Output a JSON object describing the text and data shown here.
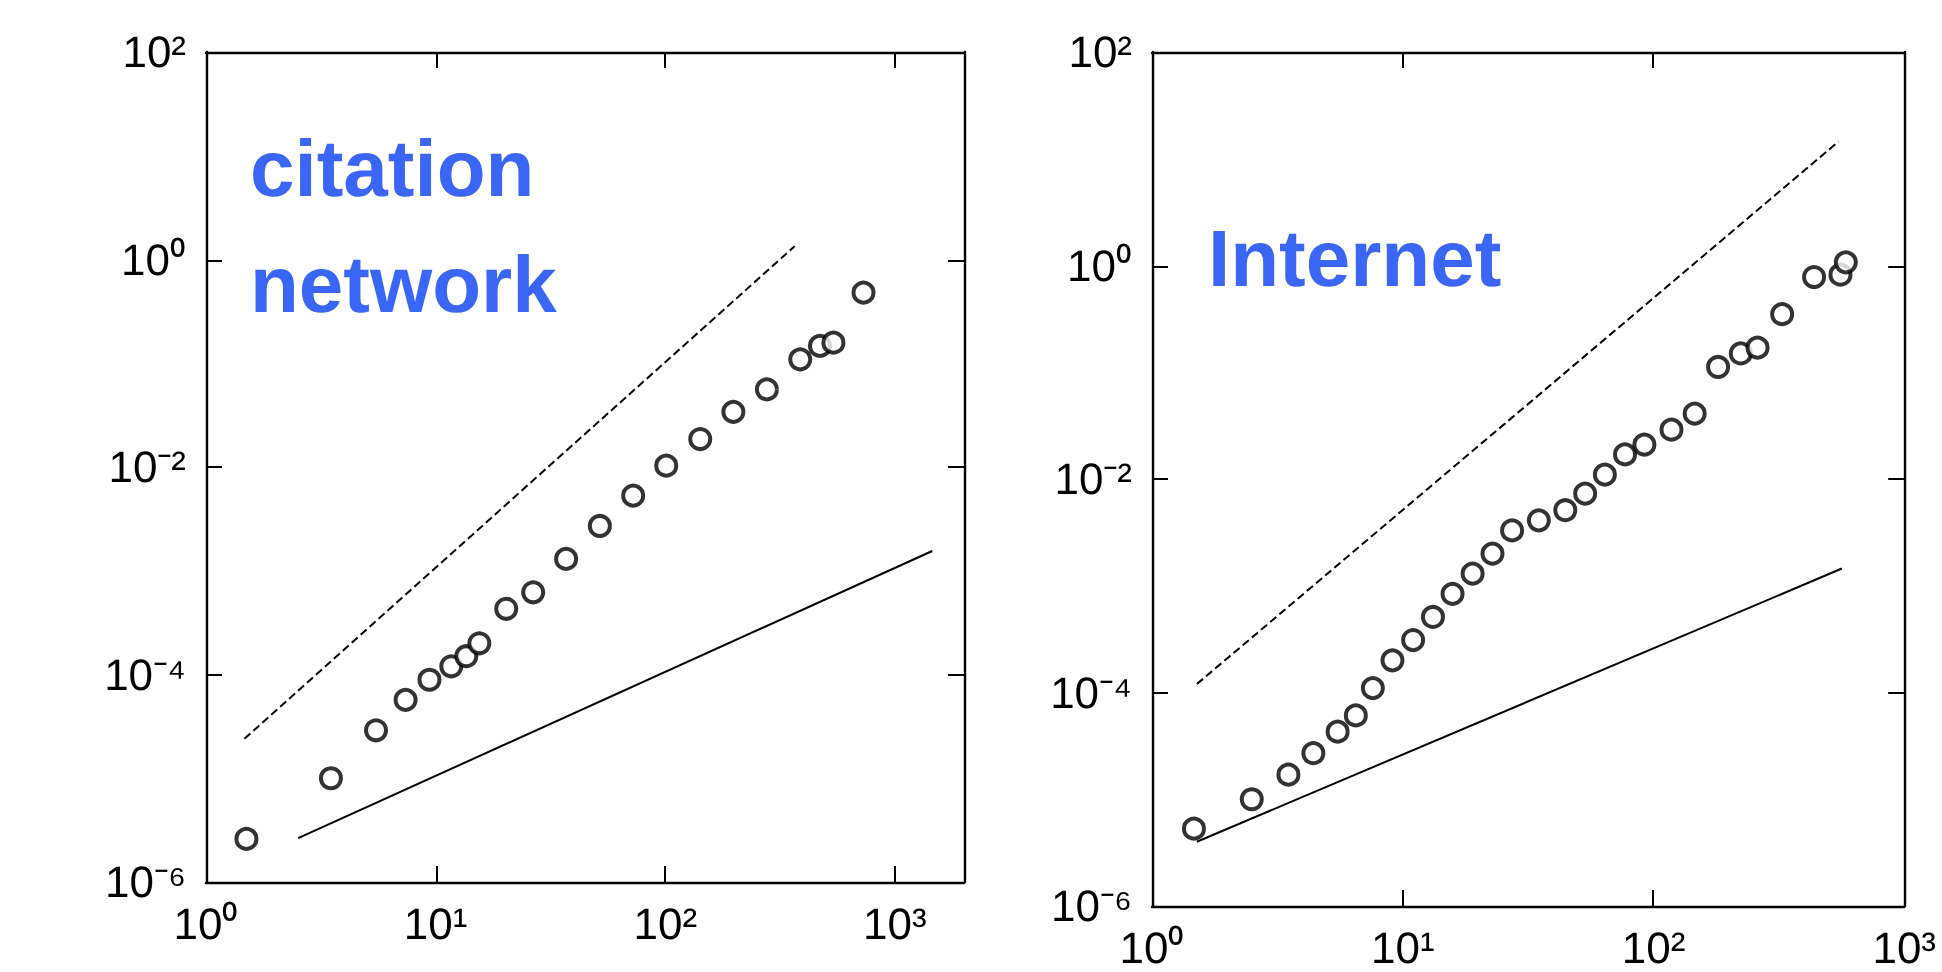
{
  "chart_data": [
    {
      "type": "scatter",
      "annotations": [
        "citation network"
      ],
      "log": "xy",
      "xlim": [
        1,
        2000
      ],
      "ylim": [
        1e-06,
        100
      ],
      "xticks": [
        {
          "value": 1,
          "label": "10⁰"
        },
        {
          "value": 10,
          "label": "10¹"
        },
        {
          "value": 100,
          "label": "10²"
        },
        {
          "value": 1000,
          "label": "10³"
        }
      ],
      "yticks": [
        {
          "value": 1e-06,
          "label": "10⁻⁶"
        },
        {
          "value": 0.0001,
          "label": "10⁻⁴"
        },
        {
          "value": 0.01,
          "label": "10⁻²"
        },
        {
          "value": 1,
          "label": "10⁰"
        },
        {
          "value": 100,
          "label": "10²"
        }
      ],
      "series": [
        {
          "color": "#000000",
          "marker": "circle",
          "x": [
            1.5,
            3.5,
            5.5,
            7.4,
            9.4,
            11.7,
            13.6,
            15.5,
            20.3,
            26.6,
            37,
            51.9,
            72.5,
            101,
            142,
            198,
            277,
            387,
            472,
            540,
            730
          ],
          "values": [
            2.6e-06,
            1e-05,
            2.9e-05,
            5.7e-05,
            8.9e-05,
            0.00012,
            0.00015,
            0.0002,
            0.00043,
            0.00062,
            0.0013,
            0.0027,
            0.0053,
            0.0103,
            0.0186,
            0.034,
            0.056,
            0.109,
            0.147,
            0.158,
            0.48
          ]
        },
        {
          "type": "line",
          "color": "#000000",
          "marker": "none",
          "line_style": "dashed",
          "x": [
            1.47,
            366
          ],
          "values": [
            2.4e-05,
            1.34
          ]
        },
        {
          "type": "line",
          "color": "#000000",
          "marker": "none",
          "line_style": "solid",
          "x": [
            2.52,
            1455
          ],
          "values": [
            2.65e-06,
            0.00155
          ]
        }
      ]
    },
    {
      "type": "scatter",
      "annotations": [
        "Internet"
      ],
      "log": "xy",
      "xlim": [
        1,
        1000
      ],
      "ylim": [
        1e-06,
        100
      ],
      "xticks": [
        {
          "value": 1,
          "label": "10⁰"
        },
        {
          "value": 10,
          "label": "10¹"
        },
        {
          "value": 100,
          "label": "10²"
        },
        {
          "value": 1000,
          "label": "10³"
        }
      ],
      "yticks": [
        {
          "value": 1e-06,
          "label": "10⁻⁶"
        },
        {
          "value": 0.0001,
          "label": "10⁻⁴"
        },
        {
          "value": 0.01,
          "label": "10⁻²"
        },
        {
          "value": 1,
          "label": "10⁰"
        },
        {
          "value": 100,
          "label": "10²"
        }
      ],
      "series": [
        {
          "color": "#000000",
          "marker": "circle",
          "x": [
            1.47,
            2.5,
            3.5,
            4.4,
            5.5,
            6.5,
            7.6,
            9.1,
            11,
            13.2,
            15.8,
            19,
            22.8,
            27.3,
            34.9,
            44.5,
            53.4,
            64,
            77,
            92,
            118,
            146,
            181,
            223,
            260,
            326,
            437,
            557,
            585
          ],
          "values": [
            5.3e-06,
            1e-05,
            1.7e-05,
            2.7e-05,
            4.3e-05,
            6.1e-05,
            0.00011,
            0.0002,
            0.00031,
            0.00051,
            0.00084,
            0.0013,
            0.002,
            0.0033,
            0.0041,
            0.0051,
            0.0073,
            0.011,
            0.017,
            0.021,
            0.029,
            0.041,
            0.112,
            0.15,
            0.17,
            0.35,
            0.78,
            0.82,
            1.07
          ]
        },
        {
          "type": "line",
          "color": "#000000",
          "marker": "none",
          "line_style": "dashed",
          "x": [
            1.51,
            547
          ],
          "values": [
            0.00012,
            14.5
          ]
        },
        {
          "type": "line",
          "color": "#000000",
          "marker": "none",
          "line_style": "solid",
          "x": [
            1.51,
            564
          ],
          "values": [
            4e-06,
            0.00145
          ]
        }
      ]
    }
  ]
}
